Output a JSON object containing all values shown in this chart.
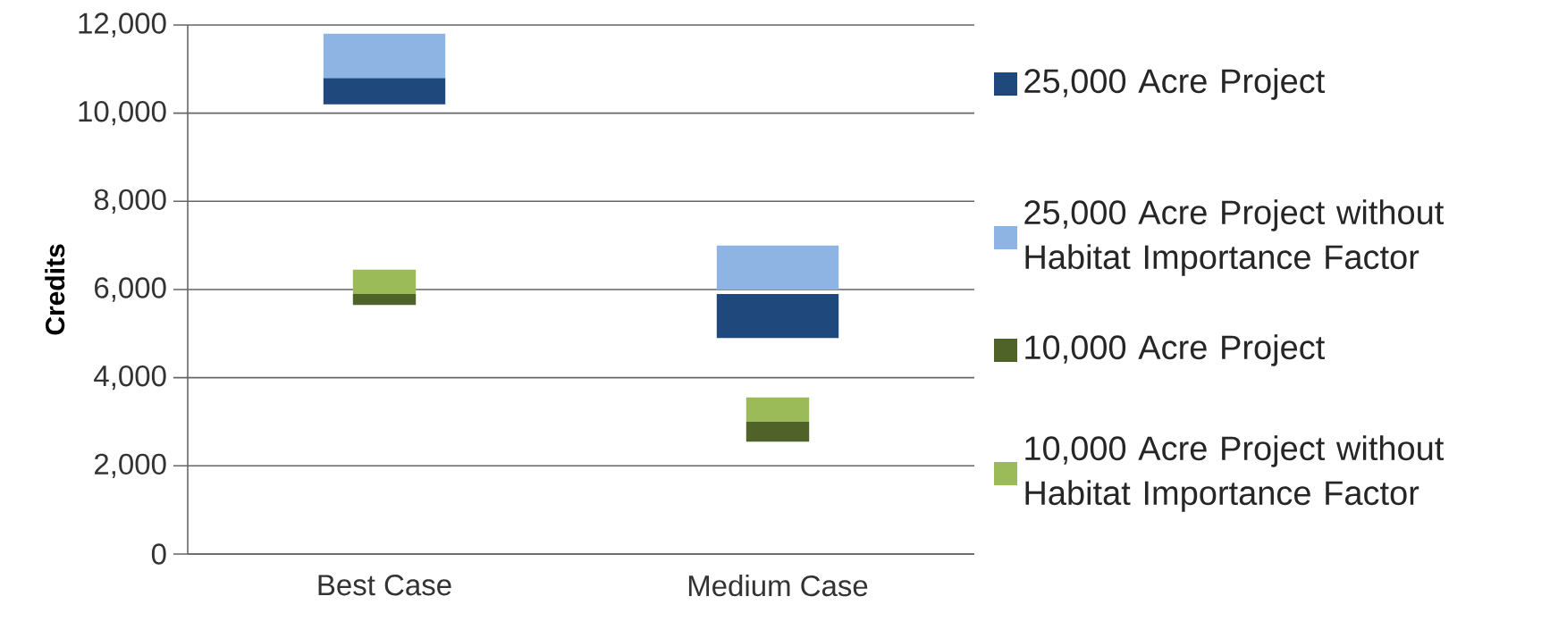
{
  "chart_data": {
    "type": "bar",
    "ylabel": "Credits",
    "categories": [
      "Best Case",
      "Medium Case"
    ],
    "series": [
      {
        "name": "25,000 Acre Project",
        "color": "#1f497d",
        "base": [
          10200,
          4900
        ],
        "values": [
          600,
          1000
        ]
      },
      {
        "name": "25,000 Acre Project without Habitat Importance Factor",
        "color": "#8eb4e3",
        "base": [
          10800,
          6000
        ],
        "values": [
          1000,
          1000
        ]
      },
      {
        "name": "10,000 Acre Project",
        "color": "#4f6228",
        "base": [
          5650,
          2550
        ],
        "values": [
          250,
          450
        ]
      },
      {
        "name": "10,000 Acre Project without Habitat Importance Factor",
        "color": "#9bbb59",
        "base": [
          5900,
          3000
        ],
        "values": [
          550,
          550
        ]
      }
    ],
    "ylim": [
      0,
      12000
    ],
    "yticks": [
      {
        "value": 0,
        "label": "0"
      },
      {
        "value": 2000,
        "label": "2,000"
      },
      {
        "value": 4000,
        "label": "4,000"
      },
      {
        "value": 6000,
        "label": "6,000"
      },
      {
        "value": 8000,
        "label": "8,000"
      },
      {
        "value": 10000,
        "label": "10,000"
      },
      {
        "value": 12000,
        "label": "12,000"
      }
    ],
    "grid": "y",
    "legend": "right"
  }
}
